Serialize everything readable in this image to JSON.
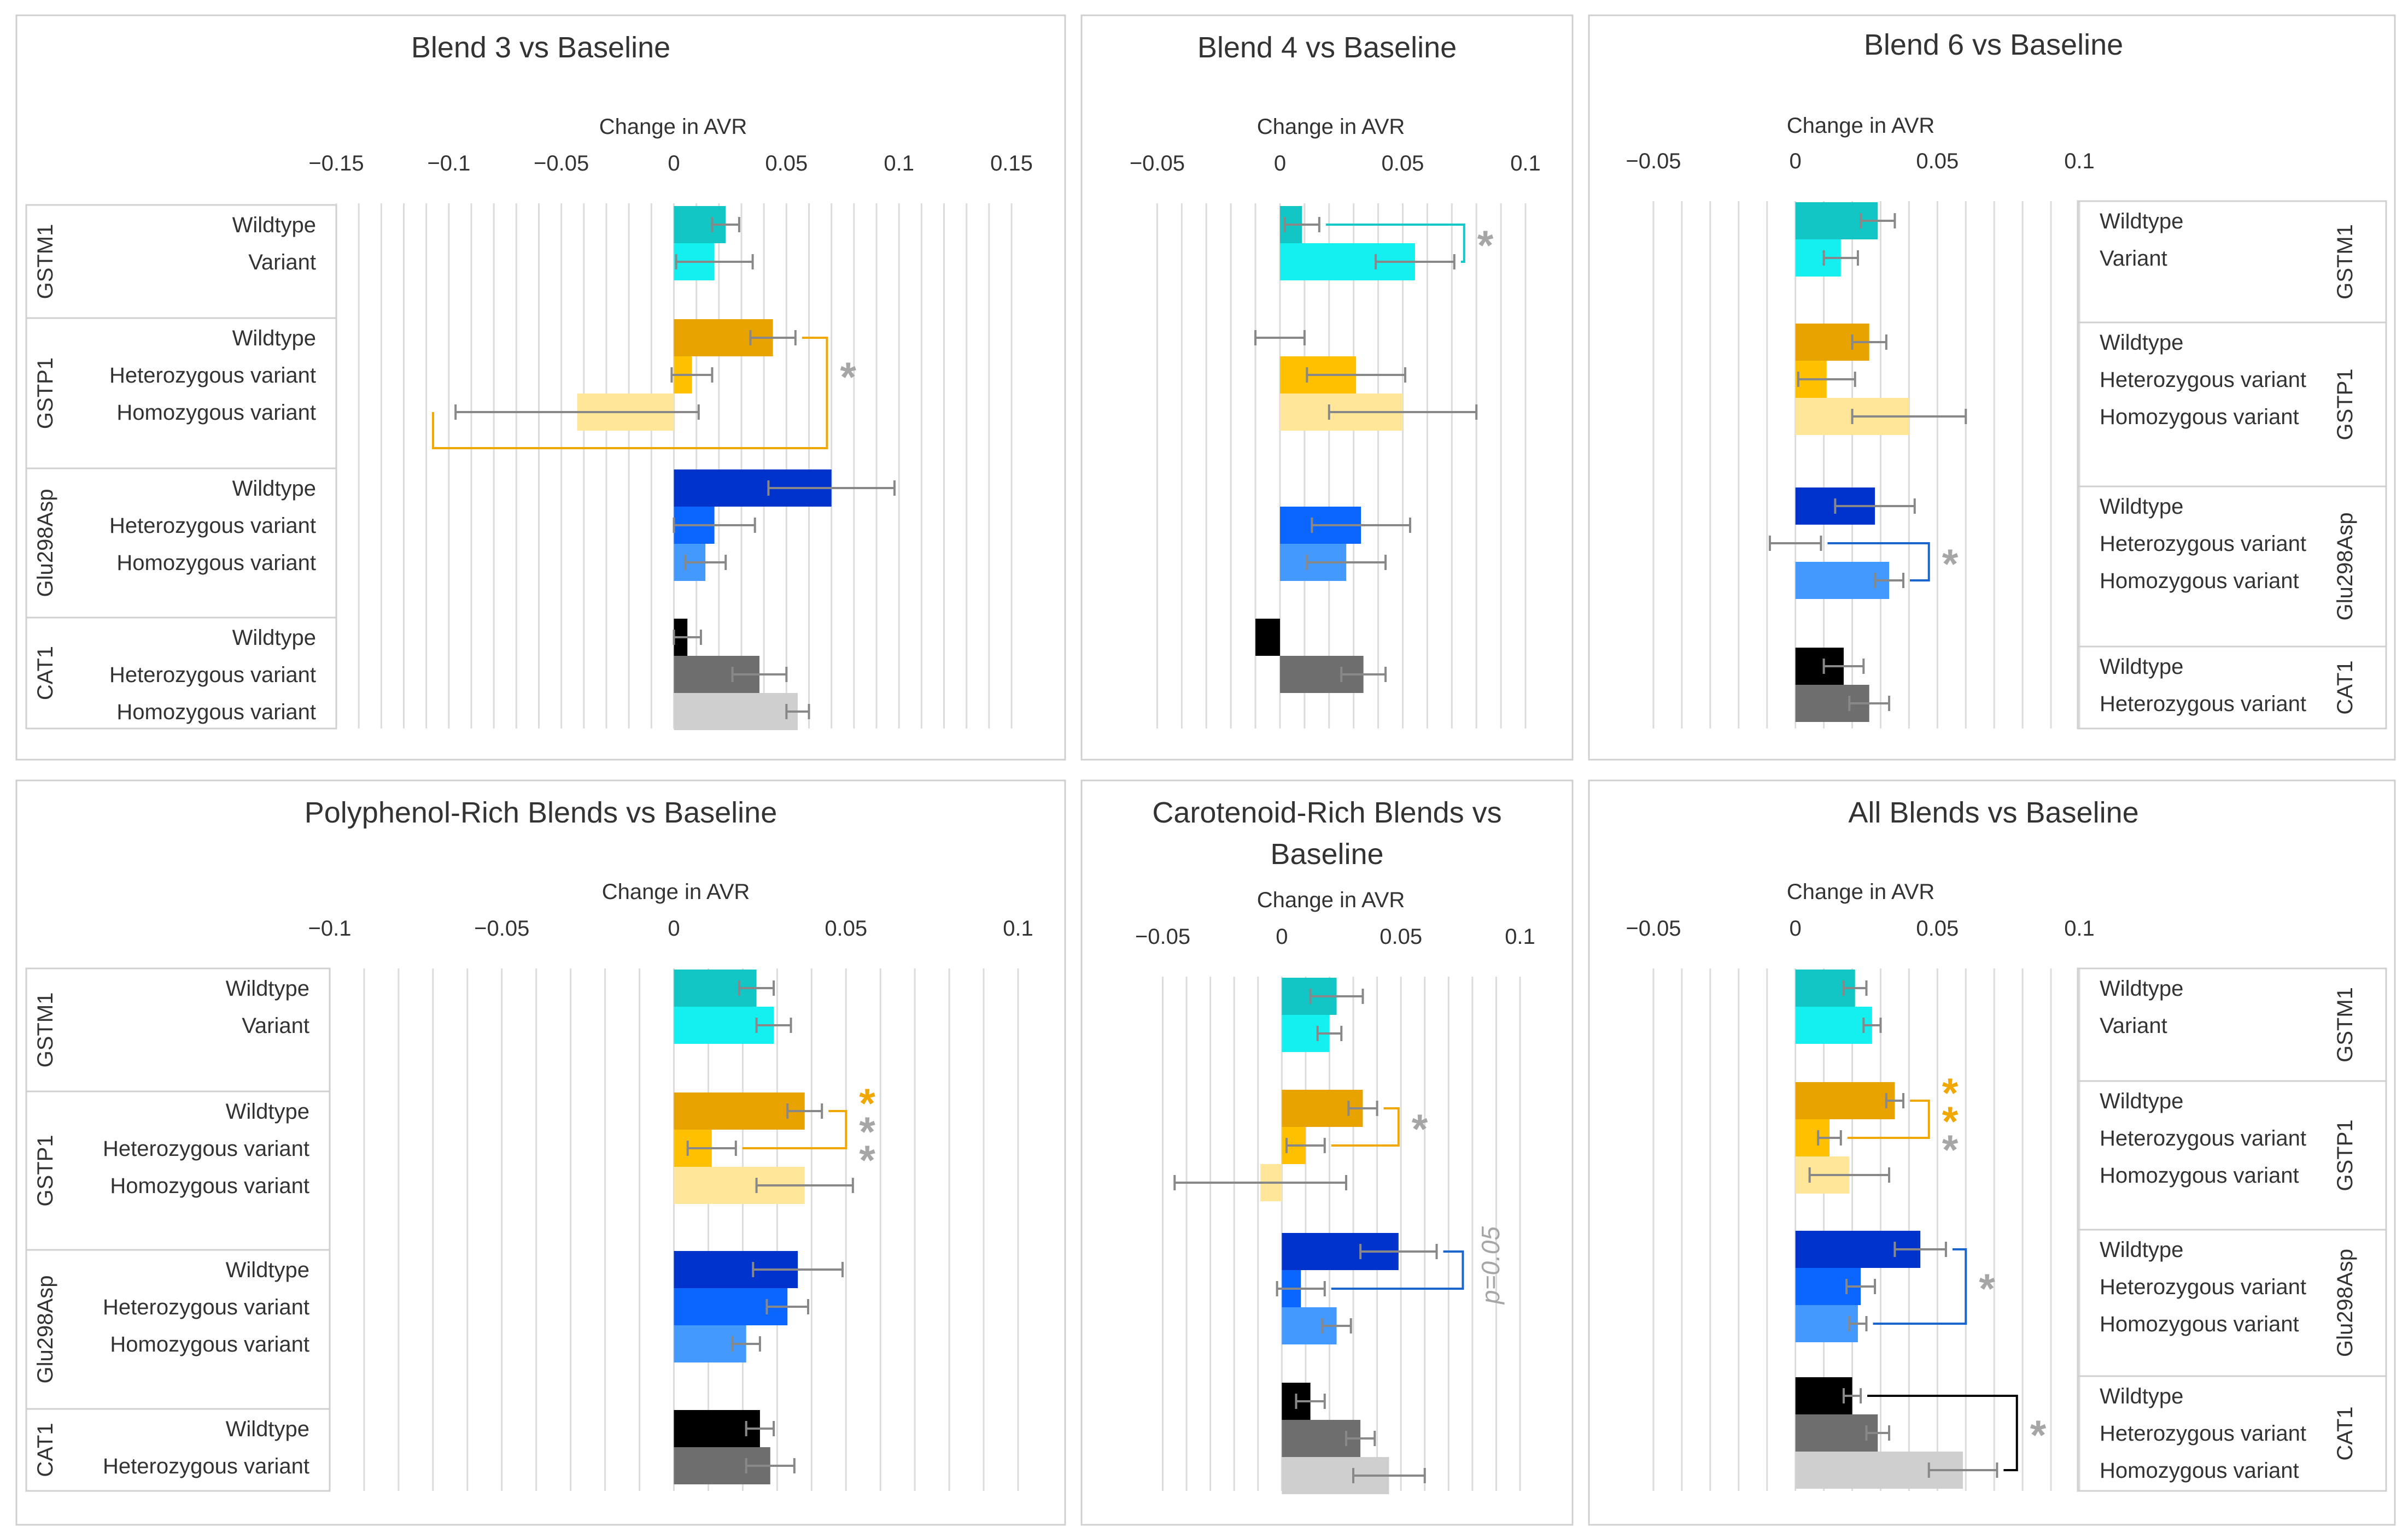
{
  "figure": {
    "panel_count": 6
  },
  "colors": {
    "grid": "#dcdcdc",
    "frame": "#d0d0d0",
    "label": "#333333",
    "err": "#888888",
    "sig_gray": "#a6a6a6",
    "gstm1_wt": "#12c6c6",
    "gstm1_var": "#14f0f0",
    "gstp1_wt": "#e8a300",
    "gstp1_het": "#ffc000",
    "gstp1_hom": "#ffe699",
    "glu_wt": "#0033cc",
    "glu_het": "#0a66ff",
    "glu_hom": "#4499ff",
    "cat1_wt": "#000000",
    "cat1_het": "#6e6e6e",
    "cat1_hom": "#cfcfcf",
    "gstp1_bracket": "#f0a800",
    "gstm1_bracket": "#14c8c8",
    "glu_bracket": "#1a66cc",
    "cat1_bracket": "#000000"
  },
  "chart_data": [
    {
      "type": "bar",
      "title": "Blend 3 vs Baseline",
      "xlabel": "Change in AVR",
      "xlim": [
        -0.15,
        0.15
      ],
      "ticks": [
        -0.15,
        -0.1,
        -0.05,
        0,
        0.05,
        0.1,
        0.15
      ],
      "tick_labels": [
        "−0.15",
        "−0.1",
        "−0.05",
        "0",
        "0.05",
        "0.1",
        "0.15"
      ],
      "grid_step": 0.01,
      "label_side": "left",
      "genes": [
        {
          "name": "GSTM1",
          "rows": [
            {
              "label": "Wildtype",
              "value": 0.023,
              "err": 0.006,
              "color": "gstm1_wt"
            },
            {
              "label": "Variant",
              "value": 0.018,
              "err": 0.017,
              "color": "gstm1_var"
            }
          ]
        },
        {
          "name": "GSTP1",
          "rows": [
            {
              "label": "Wildtype",
              "value": 0.044,
              "err": 0.01,
              "color": "gstp1_wt"
            },
            {
              "label": "Heterozygous variant",
              "value": 0.008,
              "err": 0.009,
              "color": "gstp1_het"
            },
            {
              "label": "Homozygous variant",
              "value": -0.043,
              "err": 0.054,
              "color": "gstp1_hom"
            }
          ]
        },
        {
          "name": "Glu298Asp",
          "rows": [
            {
              "label": "Wildtype",
              "value": 0.07,
              "err": 0.028,
              "color": "glu_wt"
            },
            {
              "label": "Heterozygous variant",
              "value": 0.018,
              "err": 0.018,
              "color": "glu_het"
            },
            {
              "label": "Homozygous variant",
              "value": 0.014,
              "err": 0.009,
              "color": "glu_hom"
            }
          ]
        },
        {
          "name": "CAT1",
          "rows": [
            {
              "label": "Wildtype",
              "value": 0.006,
              "err": 0.006,
              "color": "cat1_wt"
            },
            {
              "label": "Heterozygous variant",
              "value": 0.038,
              "err": 0.012,
              "color": "cat1_het"
            },
            {
              "label": "Homozygous variant",
              "value": 0.055,
              "err": 0.005,
              "color": "cat1_hom"
            }
          ]
        }
      ],
      "brackets": [
        {
          "from": [
            1,
            0
          ],
          "to": [
            1,
            2
          ],
          "x": 0.068,
          "left_x": -0.107,
          "color": "gstp1_bracket",
          "marks": [
            {
              "text": "*",
              "color": "sig_gray"
            }
          ]
        }
      ]
    },
    {
      "type": "bar",
      "title": "Blend 4 vs Baseline",
      "xlabel": "Change in AVR",
      "xlim": [
        -0.057,
        0.1
      ],
      "ticks": [
        -0.05,
        0,
        0.05,
        0.1
      ],
      "tick_labels": [
        "−0.05",
        "0",
        "0.05",
        "0.1"
      ],
      "grid_step": 0.01,
      "label_side": "none",
      "genes": [
        {
          "name": "GSTM1",
          "rows": [
            {
              "label": "Wildtype",
              "value": 0.009,
              "err": 0.007,
              "color": "gstm1_wt"
            },
            {
              "label": "Variant",
              "value": 0.055,
              "err": 0.016,
              "color": "gstm1_var"
            }
          ]
        },
        {
          "name": "GSTP1",
          "rows": [
            {
              "label": "Wildtype",
              "value": 0.0,
              "err": 0.01,
              "color": "gstp1_wt"
            },
            {
              "label": "Heterozygous variant",
              "value": 0.031,
              "err": 0.02,
              "color": "gstp1_het"
            },
            {
              "label": "Homozygous variant",
              "value": 0.05,
              "err": 0.03,
              "color": "gstp1_hom"
            }
          ]
        },
        {
          "name": "Glu298Asp",
          "rows": [
            {
              "label": "Wildtype",
              "value": 0.0,
              "err": 0.0,
              "color": "glu_wt"
            },
            {
              "label": "Heterozygous variant",
              "value": 0.033,
              "err": 0.02,
              "color": "glu_het"
            },
            {
              "label": "Homozygous variant",
              "value": 0.027,
              "err": 0.016,
              "color": "glu_hom"
            }
          ]
        },
        {
          "name": "CAT1",
          "rows": [
            {
              "label": "Wildtype",
              "value": -0.01,
              "err": 0.0,
              "color": "cat1_wt"
            },
            {
              "label": "Heterozygous variant",
              "value": 0.034,
              "err": 0.009,
              "color": "cat1_het"
            },
            {
              "label": "Homozygous variant",
              "value": 0.0,
              "err": 0.0,
              "color": "cat1_hom"
            }
          ]
        }
      ],
      "brackets": [
        {
          "from": [
            0,
            0
          ],
          "to": [
            0,
            1
          ],
          "x": 0.075,
          "color": "gstm1_bracket",
          "marks": [
            {
              "text": "*",
              "color": "sig_gray"
            }
          ]
        }
      ]
    },
    {
      "type": "bar",
      "title": "Blend 6 vs Baseline",
      "xlabel": "Change in AVR",
      "xlim": [
        -0.055,
        0.1
      ],
      "ticks": [
        -0.05,
        0,
        0.05,
        0.1
      ],
      "tick_labels": [
        "−0.05",
        "0",
        "0.05",
        "0.1"
      ],
      "grid_step": 0.01,
      "label_side": "right",
      "genes": [
        {
          "name": "GSTM1",
          "rows": [
            {
              "label": "Wildtype",
              "value": 0.029,
              "err": 0.006,
              "color": "gstm1_wt"
            },
            {
              "label": "Variant",
              "value": 0.016,
              "err": 0.006,
              "color": "gstm1_var"
            }
          ]
        },
        {
          "name": "GSTP1",
          "rows": [
            {
              "label": "Wildtype",
              "value": 0.026,
              "err": 0.006,
              "color": "gstp1_wt"
            },
            {
              "label": "Heterozygous variant",
              "value": 0.011,
              "err": 0.01,
              "color": "gstp1_het"
            },
            {
              "label": "Homozygous variant",
              "value": 0.04,
              "err": 0.02,
              "color": "gstp1_hom"
            }
          ]
        },
        {
          "name": "Glu298Asp",
          "rows": [
            {
              "label": "Wildtype",
              "value": 0.028,
              "err": 0.014,
              "color": "glu_wt"
            },
            {
              "label": "Heterozygous variant",
              "value": 0.0,
              "err": 0.009,
              "color": "glu_het"
            },
            {
              "label": "Homozygous variant",
              "value": 0.033,
              "err": 0.005,
              "color": "glu_hom"
            }
          ]
        },
        {
          "name": "CAT1",
          "rows": [
            {
              "label": "Wildtype",
              "value": 0.017,
              "err": 0.007,
              "color": "cat1_wt"
            },
            {
              "label": "Heterozygous variant",
              "value": 0.026,
              "err": 0.007,
              "color": "cat1_het"
            }
          ]
        }
      ],
      "brackets": [
        {
          "from": [
            2,
            1
          ],
          "to": [
            2,
            2
          ],
          "x": 0.047,
          "color": "glu_bracket",
          "marks": [
            {
              "text": "*",
              "color": "sig_gray"
            }
          ]
        }
      ]
    },
    {
      "type": "bar",
      "title": "Polyphenol-Rich Blends vs Baseline",
      "xlabel": "Change in AVR",
      "xlim": [
        -0.1,
        0.1
      ],
      "ticks": [
        -0.1,
        -0.05,
        0,
        0.05,
        0.1
      ],
      "tick_labels": [
        "−0.1",
        "−0.05",
        "0",
        "0.05",
        "0.1"
      ],
      "grid_step": 0.01,
      "label_side": "left",
      "genes": [
        {
          "name": "GSTM1",
          "rows": [
            {
              "label": "Wildtype",
              "value": 0.024,
              "err": 0.005,
              "color": "gstm1_wt"
            },
            {
              "label": "Variant",
              "value": 0.029,
              "err": 0.005,
              "color": "gstm1_var"
            }
          ]
        },
        {
          "name": "GSTP1",
          "rows": [
            {
              "label": "Wildtype",
              "value": 0.038,
              "err": 0.005,
              "color": "gstp1_wt"
            },
            {
              "label": "Heterozygous variant",
              "value": 0.011,
              "err": 0.007,
              "color": "gstp1_het"
            },
            {
              "label": "Homozygous variant",
              "value": 0.038,
              "err": 0.014,
              "color": "gstp1_hom"
            }
          ]
        },
        {
          "name": "Glu298Asp",
          "rows": [
            {
              "label": "Wildtype",
              "value": 0.036,
              "err": 0.013,
              "color": "glu_wt"
            },
            {
              "label": "Heterozygous variant",
              "value": 0.033,
              "err": 0.006,
              "color": "glu_het"
            },
            {
              "label": "Homozygous variant",
              "value": 0.021,
              "err": 0.004,
              "color": "glu_hom"
            }
          ]
        },
        {
          "name": "CAT1",
          "rows": [
            {
              "label": "Wildtype",
              "value": 0.025,
              "err": 0.004,
              "color": "cat1_wt"
            },
            {
              "label": "Heterozygous variant",
              "value": 0.028,
              "err": 0.007,
              "color": "cat1_het"
            }
          ]
        }
      ],
      "brackets": [
        {
          "from": [
            1,
            0
          ],
          "to": [
            1,
            1
          ],
          "x": 0.05,
          "color": "gstp1_bracket",
          "marks": [
            {
              "text": "*",
              "color": "gstp1_bracket"
            },
            {
              "text": "*",
              "color": "sig_gray"
            },
            {
              "text": "*",
              "color": "sig_gray"
            }
          ]
        }
      ]
    },
    {
      "type": "bar",
      "title": "Carotenoid-Rich Blends vs Baseline",
      "title_lines": [
        "Carotenoid-Rich Blends vs",
        "Baseline"
      ],
      "xlabel": "Change in AVR",
      "xlim": [
        -0.057,
        0.1
      ],
      "ticks": [
        -0.05,
        0,
        0.05,
        0.1
      ],
      "tick_labels": [
        "−0.05",
        "0",
        "0.05",
        "0.1"
      ],
      "grid_step": 0.01,
      "label_side": "none",
      "annotation": "p=0.05",
      "genes": [
        {
          "name": "GSTM1",
          "rows": [
            {
              "label": "Wildtype",
              "value": 0.023,
              "err": 0.011,
              "color": "gstm1_wt"
            },
            {
              "label": "Variant",
              "value": 0.02,
              "err": 0.005,
              "color": "gstm1_var"
            }
          ]
        },
        {
          "name": "GSTP1",
          "rows": [
            {
              "label": "Wildtype",
              "value": 0.034,
              "err": 0.006,
              "color": "gstp1_wt"
            },
            {
              "label": "Heterozygous variant",
              "value": 0.01,
              "err": 0.008,
              "color": "gstp1_het"
            },
            {
              "label": "Homozygous variant",
              "value": -0.009,
              "err": 0.036,
              "color": "gstp1_hom"
            }
          ]
        },
        {
          "name": "Glu298Asp",
          "rows": [
            {
              "label": "Wildtype",
              "value": 0.049,
              "err": 0.016,
              "color": "glu_wt"
            },
            {
              "label": "Heterozygous variant",
              "value": 0.008,
              "err": 0.01,
              "color": "glu_het"
            },
            {
              "label": "Homozygous variant",
              "value": 0.023,
              "err": 0.006,
              "color": "glu_hom"
            }
          ]
        },
        {
          "name": "CAT1",
          "rows": [
            {
              "label": "Wildtype",
              "value": 0.012,
              "err": 0.006,
              "color": "cat1_wt"
            },
            {
              "label": "Heterozygous variant",
              "value": 0.033,
              "err": 0.006,
              "color": "cat1_het"
            },
            {
              "label": "Homozygous variant",
              "value": 0.045,
              "err": 0.015,
              "color": "cat1_hom"
            }
          ]
        }
      ],
      "brackets": [
        {
          "from": [
            1,
            0
          ],
          "to": [
            1,
            1
          ],
          "x": 0.049,
          "color": "gstp1_bracket",
          "marks": [
            {
              "text": "*",
              "color": "sig_gray"
            }
          ]
        },
        {
          "from": [
            2,
            0
          ],
          "to": [
            2,
            1
          ],
          "x": 0.076,
          "color": "glu_bracket",
          "marks": []
        }
      ]
    },
    {
      "type": "bar",
      "title": "All Blends vs Baseline",
      "xlabel": "Change in AVR",
      "xlim": [
        -0.055,
        0.1
      ],
      "ticks": [
        -0.05,
        0,
        0.05,
        0.1
      ],
      "tick_labels": [
        "−0.05",
        "0",
        "0.05",
        "0.1"
      ],
      "grid_step": 0.01,
      "label_side": "right",
      "genes": [
        {
          "name": "GSTM1",
          "rows": [
            {
              "label": "Wildtype",
              "value": 0.021,
              "err": 0.004,
              "color": "gstm1_wt"
            },
            {
              "label": "Variant",
              "value": 0.027,
              "err": 0.003,
              "color": "gstm1_var"
            }
          ]
        },
        {
          "name": "GSTP1",
          "rows": [
            {
              "label": "Wildtype",
              "value": 0.035,
              "err": 0.003,
              "color": "gstp1_wt"
            },
            {
              "label": "Heterozygous variant",
              "value": 0.012,
              "err": 0.004,
              "color": "gstp1_het"
            },
            {
              "label": "Homozygous variant",
              "value": 0.019,
              "err": 0.014,
              "color": "gstp1_hom"
            }
          ]
        },
        {
          "name": "Glu298Asp",
          "rows": [
            {
              "label": "Wildtype",
              "value": 0.044,
              "err": 0.009,
              "color": "glu_wt"
            },
            {
              "label": "Heterozygous variant",
              "value": 0.023,
              "err": 0.005,
              "color": "glu_het"
            },
            {
              "label": "Homozygous variant",
              "value": 0.022,
              "err": 0.003,
              "color": "glu_hom"
            }
          ]
        },
        {
          "name": "CAT1",
          "rows": [
            {
              "label": "Wildtype",
              "value": 0.02,
              "err": 0.003,
              "color": "cat1_wt"
            },
            {
              "label": "Heterozygous variant",
              "value": 0.029,
              "err": 0.004,
              "color": "cat1_het"
            },
            {
              "label": "Homozygous variant",
              "value": 0.059,
              "err": 0.012,
              "color": "cat1_hom"
            }
          ]
        }
      ],
      "brackets": [
        {
          "from": [
            1,
            0
          ],
          "to": [
            1,
            1
          ],
          "x": 0.047,
          "color": "gstp1_bracket",
          "marks": [
            {
              "text": "*",
              "color": "gstp1_bracket"
            },
            {
              "text": "*",
              "color": "gstp1_bracket"
            },
            {
              "text": "*",
              "color": "sig_gray"
            }
          ]
        },
        {
          "from": [
            2,
            0
          ],
          "to": [
            2,
            2
          ],
          "x": 0.06,
          "color": "glu_bracket",
          "marks": [
            {
              "text": "*",
              "color": "sig_gray"
            }
          ]
        },
        {
          "from": [
            3,
            0
          ],
          "to": [
            3,
            2
          ],
          "x": 0.078,
          "color": "cat1_bracket",
          "marks": [
            {
              "text": "*",
              "color": "sig_gray"
            }
          ]
        }
      ]
    }
  ]
}
